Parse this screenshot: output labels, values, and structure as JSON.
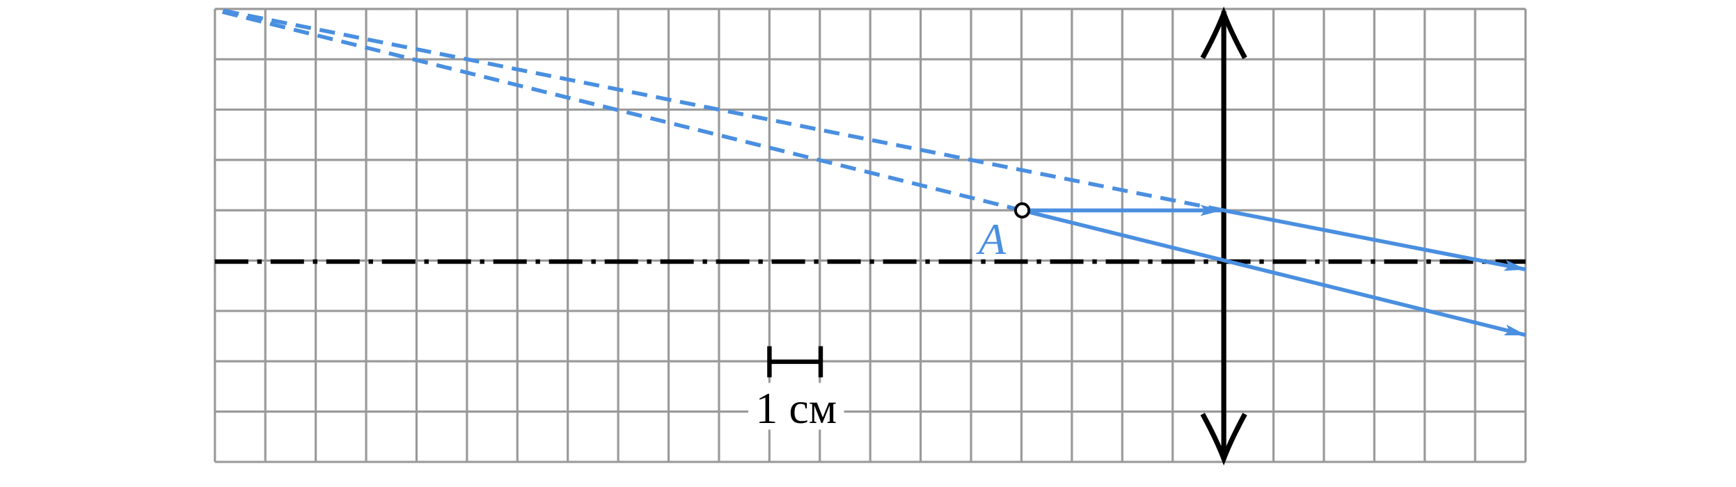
{
  "labels": {
    "point": "A",
    "scale": "1 см"
  }
}
